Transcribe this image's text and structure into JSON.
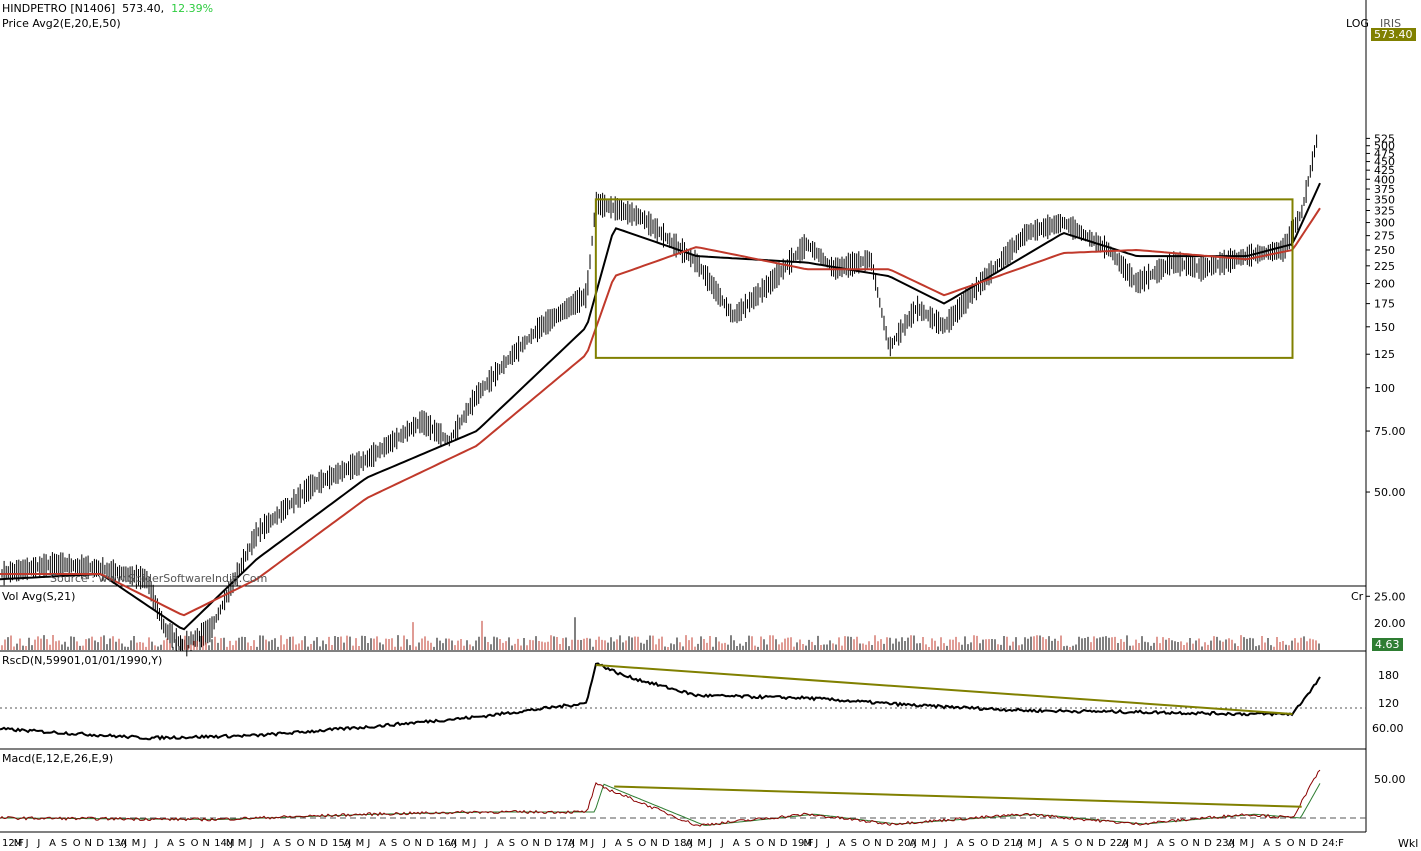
{
  "header": {
    "symbol": "HINDPETRO [N1406]",
    "last_price": "573.40",
    "change_pct": "12.39%",
    "price_indicator": "Price  Avg2(E,20,E,50)",
    "log_label": "LOG",
    "iris_label": "IRIS",
    "price_badge": "573.40"
  },
  "volume_panel": {
    "title": "Vol  Avg(S,21)",
    "unit": "Cr",
    "badge": "4.63",
    "tick_label": "20.00"
  },
  "rscd_panel": {
    "title": "RscD(N,59901,01/01/1990,Y)",
    "ticks": [
      "180",
      "120",
      "60.00"
    ]
  },
  "macd_panel": {
    "title": "Macd(E,12,E,26,E,9)",
    "ticks": [
      "50.00"
    ]
  },
  "source": "Source : www.SpiderSoftwareIndia.Com",
  "period_label": "Wkl",
  "colors": {
    "price_bar": "#000000",
    "ema20": "#000000",
    "ema50": "#c0392b",
    "box": "#808000",
    "trendline": "#808000",
    "macd": "#8b0000",
    "signal": "#2e7d32",
    "badge_bg": "#808000",
    "vol_badge_bg": "#2e7d32",
    "change_color": "#2ecc40"
  },
  "chart_data": {
    "type": "line",
    "title": "HINDPETRO [N1406]",
    "price_scale": "log",
    "y_ticks": [
      573.4,
      525,
      500,
      475,
      450,
      425,
      400,
      375,
      350,
      325,
      300,
      275,
      250,
      225,
      200,
      175,
      150,
      125,
      100,
      75.0,
      50.0,
      25.0
    ],
    "price_axis_labels": [
      "525",
      "500",
      "475",
      "450",
      "425",
      "400",
      "375",
      "350",
      "325",
      "300",
      "275",
      "250",
      "225",
      "200",
      "175",
      "150",
      "125",
      "100",
      "75.00",
      "50.00",
      "25.00"
    ],
    "x_year_labels": [
      "12:F",
      "13:J",
      "14:J",
      "15:J",
      "16:J",
      "17:J",
      "18:J",
      "19:F",
      "20:J",
      "21:J",
      "22:J",
      "23:J",
      "24:F"
    ],
    "x_month_labels": [
      "12:F",
      "M",
      "J",
      "J",
      "A",
      "S",
      "O",
      "N",
      "D",
      "13:J",
      "A",
      "M",
      "J",
      "J",
      "A",
      "S",
      "O",
      "N",
      "14:J",
      "M",
      "M",
      "J",
      "J",
      "A",
      "S",
      "O",
      "N",
      "D",
      "15:J",
      "A",
      "M",
      "J",
      "A",
      "S",
      "O",
      "N",
      "D",
      "16:J",
      "A",
      "M",
      "J",
      "J",
      "A",
      "S",
      "O",
      "N",
      "D",
      "17:J",
      "A",
      "M",
      "J",
      "J",
      "A",
      "S",
      "O",
      "N",
      "D",
      "18:J",
      "A",
      "M",
      "J",
      "J",
      "A",
      "S",
      "O",
      "N",
      "D",
      "19:F",
      "M",
      "J",
      "J",
      "A",
      "S",
      "O",
      "N",
      "D",
      "20:J",
      "A",
      "M",
      "J",
      "J",
      "A",
      "S",
      "O",
      "D",
      "21:J",
      "A",
      "M",
      "J",
      "A",
      "S",
      "O",
      "N",
      "D",
      "22:J",
      "A",
      "M",
      "J",
      "A",
      "S",
      "O",
      "N",
      "D",
      "23:J",
      "A",
      "M",
      "J",
      "A",
      "S",
      "O",
      "N",
      "D",
      "24:F"
    ],
    "series": [
      {
        "name": "Price",
        "x": [
          "2012-02",
          "2012-08",
          "2013-01",
          "2013-06",
          "2013-08",
          "2013-10",
          "2014-01",
          "2014-06",
          "2014-12",
          "2015-06",
          "2015-12",
          "2016-03",
          "2016-06",
          "2016-10",
          "2017-01",
          "2017-06",
          "2017-07",
          "2017-09",
          "2017-12",
          "2018-06",
          "2018-10",
          "2019-02",
          "2019-06",
          "2019-09",
          "2020-01",
          "2020-03",
          "2020-06",
          "2020-09",
          "2021-01",
          "2021-06",
          "2021-10",
          "2022-03",
          "2022-06",
          "2022-10",
          "2023-01",
          "2023-06",
          "2023-10",
          "2023-12",
          "2024-02"
        ],
        "values": [
          29,
          31,
          30,
          28,
          20,
          18,
          20,
          38,
          52,
          62,
          80,
          70,
          95,
          125,
          150,
          185,
          340,
          330,
          310,
          230,
          160,
          200,
          260,
          220,
          235,
          130,
          170,
          150,
          200,
          280,
          300,
          250,
          200,
          230,
          220,
          240,
          250,
          320,
          573.4
        ]
      },
      {
        "name": "EMA20",
        "x": [
          "2012-02",
          "2013-01",
          "2013-10",
          "2014-06",
          "2015-06",
          "2016-06",
          "2017-06",
          "2017-09",
          "2018-06",
          "2019-06",
          "2020-03",
          "2020-09",
          "2021-10",
          "2022-06",
          "2023-06",
          "2023-11",
          "2024-02"
        ],
        "values": [
          28,
          29,
          20,
          32,
          55,
          75,
          150,
          290,
          240,
          230,
          210,
          175,
          280,
          240,
          240,
          260,
          390
        ]
      },
      {
        "name": "EMA50",
        "x": [
          "2012-02",
          "2013-01",
          "2013-10",
          "2014-06",
          "2015-06",
          "2016-06",
          "2017-06",
          "2017-09",
          "2018-06",
          "2019-06",
          "2020-03",
          "2020-09",
          "2021-10",
          "2022-06",
          "2023-06",
          "2023-11",
          "2024-02"
        ],
        "values": [
          29,
          29,
          22,
          28,
          48,
          68,
          125,
          210,
          255,
          220,
          220,
          185,
          245,
          250,
          235,
          250,
          330
        ]
      }
    ],
    "rscd": {
      "x": [
        "2012-02",
        "2013-06",
        "2014-06",
        "2015-06",
        "2016-06",
        "2017-06",
        "2017-07",
        "2017-10",
        "2018-06",
        "2019-06",
        "2020-06",
        "2021-06",
        "2022-06",
        "2023-06",
        "2023-11",
        "2024-02"
      ],
      "values": [
        58,
        40,
        45,
        62,
        82,
        110,
        190,
        165,
        125,
        120,
        105,
        95,
        92,
        88,
        88,
        160
      ]
    },
    "macd": {
      "x": [
        "2012-02",
        "2014-01",
        "2015-06",
        "2016-06",
        "2017-06",
        "2017-07",
        "2018-06",
        "2019-06",
        "2020-03",
        "2021-06",
        "2022-06",
        "2023-06",
        "2023-11",
        "2024-02"
      ],
      "values": [
        0,
        -2,
        5,
        8,
        8,
        45,
        -10,
        5,
        -8,
        5,
        -8,
        5,
        0,
        65
      ]
    },
    "annotations": [
      {
        "type": "rectangle",
        "from": [
          "2017-07",
          350
        ],
        "to": [
          "2023-11",
          122
        ]
      }
    ]
  }
}
